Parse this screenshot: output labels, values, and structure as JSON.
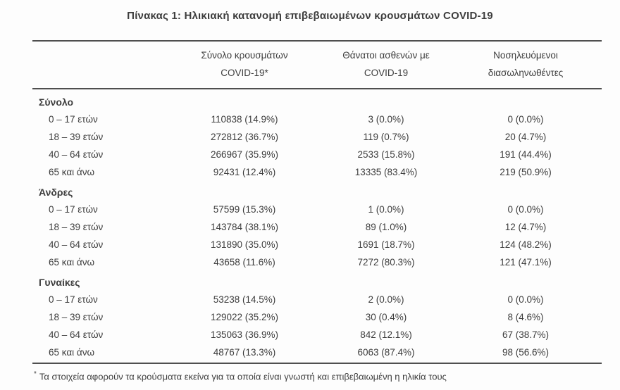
{
  "title": "Πίνακας 1: Ηλικιακή κατανομή επιβεβαιωμένων κρουσμάτων COVID-19",
  "table": {
    "headers": [
      {
        "line1": "Σύνολο κρουσμάτων",
        "line2": "COVID-19*"
      },
      {
        "line1": "Θάνατοι ασθενών με",
        "line2": "COVID-19"
      },
      {
        "line1": "Νοσηλευόμενοι",
        "line2": "διασωληνωθέντες"
      }
    ],
    "sections": [
      {
        "label": "Σύνολο",
        "rows": [
          {
            "label": "0 – 17 ετών",
            "cases": "110838 (14.9%)",
            "deaths": "3 (0.0%)",
            "intubated": "0 (0.0%)"
          },
          {
            "label": "18 – 39 ετών",
            "cases": "272812 (36.7%)",
            "deaths": "119 (0.7%)",
            "intubated": "20 (4.7%)"
          },
          {
            "label": "40 – 64 ετών",
            "cases": "266967 (35.9%)",
            "deaths": "2533 (15.8%)",
            "intubated": "191 (44.4%)"
          },
          {
            "label": "65 και άνω",
            "cases": "92431 (12.4%)",
            "deaths": "13335 (83.4%)",
            "intubated": "219 (50.9%)"
          }
        ]
      },
      {
        "label": "Άνδρες",
        "rows": [
          {
            "label": "0 – 17 ετών",
            "cases": "57599 (15.3%)",
            "deaths": "1 (0.0%)",
            "intubated": "0 (0.0%)"
          },
          {
            "label": "18 – 39 ετών",
            "cases": "143784 (38.1%)",
            "deaths": "89 (1.0%)",
            "intubated": "12 (4.7%)"
          },
          {
            "label": "40 – 64 ετών",
            "cases": "131890 (35.0%)",
            "deaths": "1691 (18.7%)",
            "intubated": "124 (48.2%)"
          },
          {
            "label": "65 και άνω",
            "cases": "43658 (11.6%)",
            "deaths": "7272 (80.3%)",
            "intubated": "121 (47.1%)"
          }
        ]
      },
      {
        "label": "Γυναίκες",
        "rows": [
          {
            "label": "0 – 17 ετών",
            "cases": "53238 (14.5%)",
            "deaths": "2 (0.0%)",
            "intubated": "0 (0.0%)"
          },
          {
            "label": "18 – 39 ετών",
            "cases": "129022 (35.2%)",
            "deaths": "30 (0.4%)",
            "intubated": "8 (4.6%)"
          },
          {
            "label": "40 – 64 ετών",
            "cases": "135063 (36.9%)",
            "deaths": "842 (12.1%)",
            "intubated": "67 (38.7%)"
          },
          {
            "label": "65 και άνω",
            "cases": "48767 (13.3%)",
            "deaths": "6063 (87.4%)",
            "intubated": "98 (56.6%)"
          }
        ]
      }
    ]
  },
  "footnote": {
    "marker": "*",
    "text": "Τα στοιχεία αφορούν τα κρούσματα εκείνα για τα οποία είναι γνωστή και επιβεβαιωμένη η ηλικία τους"
  },
  "colors": {
    "text": "#3d3d3d",
    "border": "#4f4f4f",
    "background": "#fdfdfd"
  }
}
